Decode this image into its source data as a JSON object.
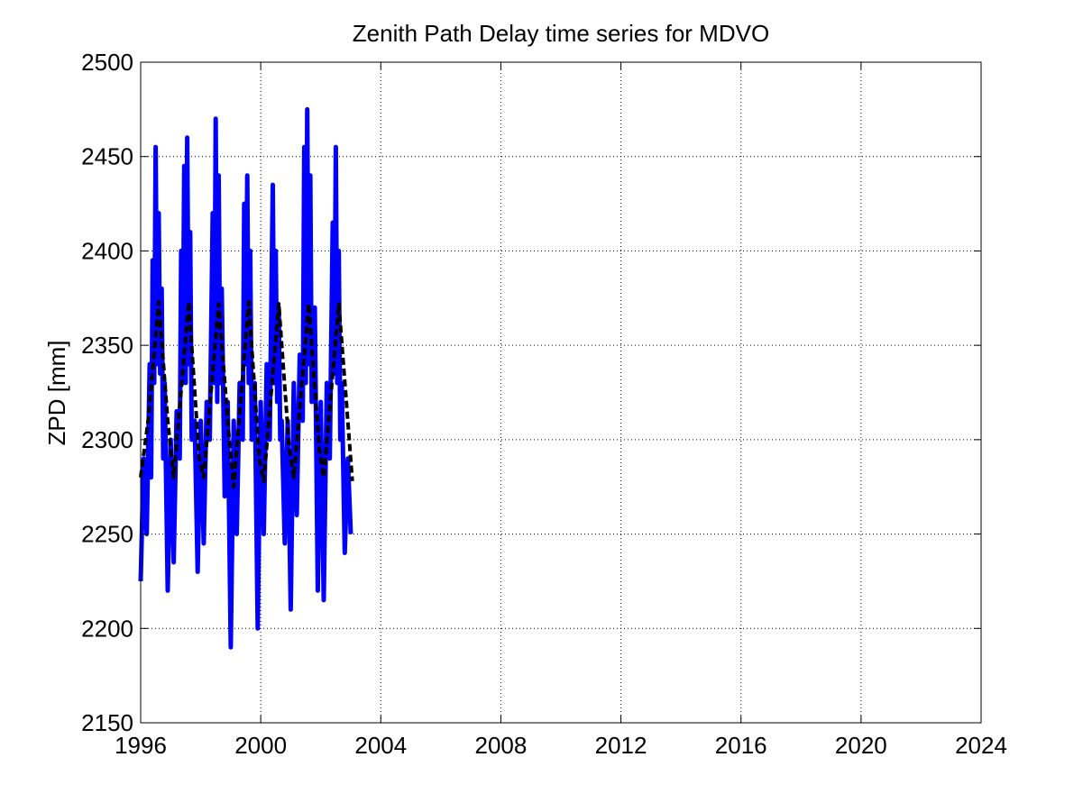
{
  "chart_data": {
    "type": "line",
    "title": "Zenith Path Delay time series for MDVO",
    "xlabel": "",
    "ylabel": "ZPD [mm]",
    "xlim": [
      1996,
      2024
    ],
    "ylim": [
      2150,
      2500
    ],
    "xticks": [
      1996,
      2000,
      2004,
      2008,
      2012,
      2016,
      2020,
      2024
    ],
    "yticks": [
      2150,
      2200,
      2250,
      2300,
      2350,
      2400,
      2450,
      2500
    ],
    "grid": true,
    "legend": "none",
    "series": [
      {
        "style": "solid",
        "color": "#0000ff",
        "x": [
          1996.0,
          1996.1,
          1996.2,
          1996.3,
          1996.35,
          1996.4,
          1996.45,
          1996.5,
          1996.55,
          1996.6,
          1996.65,
          1996.7,
          1996.75,
          1996.8,
          1996.9,
          1997.0,
          1997.1,
          1997.2,
          1997.3,
          1997.35,
          1997.4,
          1997.45,
          1997.5,
          1997.55,
          1997.6,
          1997.65,
          1997.7,
          1997.8,
          1997.9,
          1998.0,
          1998.1,
          1998.2,
          1998.3,
          1998.4,
          1998.45,
          1998.5,
          1998.55,
          1998.6,
          1998.65,
          1998.7,
          1998.8,
          1998.9,
          1999.0,
          1999.1,
          1999.2,
          1999.3,
          1999.4,
          1999.45,
          1999.5,
          1999.55,
          1999.6,
          1999.65,
          1999.7,
          1999.8,
          1999.9,
          2000.0,
          2000.1,
          2000.2,
          2000.3,
          2000.4,
          2000.45,
          2000.5,
          2000.55,
          2000.6,
          2000.65,
          2000.7,
          2000.8,
          2000.9,
          2001.0,
          2001.1,
          2001.2,
          2001.3,
          2001.4,
          2001.45,
          2001.5,
          2001.55,
          2001.6,
          2001.65,
          2001.7,
          2001.8,
          2001.9,
          2002.0,
          2002.1,
          2002.2,
          2002.3,
          2002.4,
          2002.45,
          2002.5,
          2002.55,
          2002.6,
          2002.65,
          2002.7,
          2002.8,
          2002.9,
          2003.0
        ],
        "y": [
          2225,
          2290,
          2250,
          2340,
          2280,
          2395,
          2330,
          2455,
          2340,
          2420,
          2335,
          2380,
          2290,
          2330,
          2220,
          2300,
          2235,
          2315,
          2290,
          2400,
          2330,
          2445,
          2330,
          2460,
          2340,
          2410,
          2300,
          2310,
          2230,
          2310,
          2245,
          2320,
          2300,
          2420,
          2330,
          2470,
          2320,
          2440,
          2330,
          2380,
          2270,
          2320,
          2190,
          2310,
          2250,
          2330,
          2300,
          2425,
          2340,
          2440,
          2330,
          2400,
          2300,
          2330,
          2200,
          2320,
          2250,
          2340,
          2300,
          2435,
          2330,
          2400,
          2320,
          2370,
          2300,
          2310,
          2245,
          2310,
          2210,
          2330,
          2260,
          2345,
          2310,
          2455,
          2330,
          2475,
          2340,
          2440,
          2320,
          2370,
          2220,
          2320,
          2215,
          2330,
          2290,
          2415,
          2335,
          2455,
          2330,
          2400,
          2300,
          2330,
          2240,
          2290,
          2250
        ]
      },
      {
        "style": "dashed",
        "color": "#000000",
        "x": [
          1996.0,
          1996.25,
          1996.6,
          1996.9,
          1997.1,
          1997.6,
          1997.95,
          1998.1,
          1998.6,
          1998.95,
          1999.1,
          1999.6,
          1999.95,
          2000.1,
          2000.6,
          2000.95,
          2001.1,
          2001.6,
          2001.95,
          2002.1,
          2002.6,
          2002.95,
          2003.05
        ],
        "y": [
          2280,
          2310,
          2373,
          2310,
          2280,
          2373,
          2290,
          2280,
          2372,
          2300,
          2275,
          2373,
          2290,
          2278,
          2372,
          2295,
          2280,
          2372,
          2295,
          2280,
          2372,
          2300,
          2278
        ]
      }
    ]
  }
}
